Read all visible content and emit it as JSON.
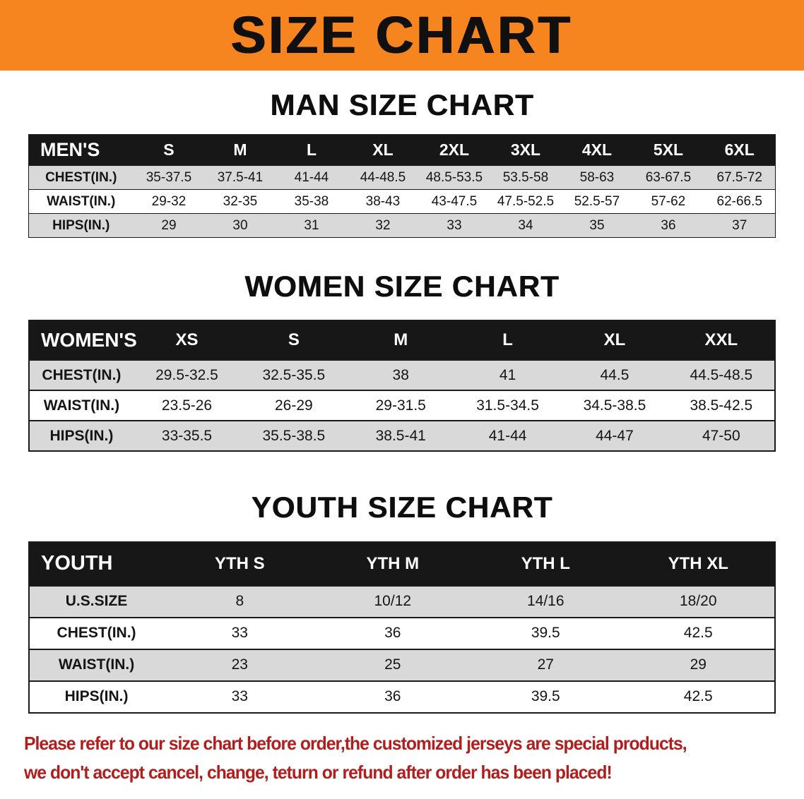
{
  "banner": {
    "title": "SIZE CHART"
  },
  "colors": {
    "banner_bg": "#f6851f",
    "banner_text": "#101010",
    "header_bg": "#171717",
    "header_text": "#ffffff",
    "stripe": "#d9d9d9",
    "border": "#1a1a1a",
    "footer_text": "#b01e1e"
  },
  "sections": [
    {
      "heading": "MAN SIZE CHART",
      "table": {
        "header": [
          "MEN'S",
          "S",
          "M",
          "L",
          "XL",
          "2XL",
          "3XL",
          "4XL",
          "5XL",
          "6XL"
        ],
        "rows": [
          {
            "label": "CHEST(IN.)",
            "values": [
              "35-37.5",
              "37.5-41",
              "41-44",
              "44-48.5",
              "48.5-53.5",
              "53.5-58",
              "58-63",
              "63-67.5",
              "67.5-72"
            ]
          },
          {
            "label": "WAIST(IN.)",
            "values": [
              "29-32",
              "32-35",
              "35-38",
              "38-43",
              "43-47.5",
              "47.5-52.5",
              "52.5-57",
              "57-62",
              "62-66.5"
            ]
          },
          {
            "label": "HIPS(IN.)",
            "values": [
              "29",
              "30",
              "31",
              "32",
              "33",
              "34",
              "35",
              "36",
              "37"
            ]
          }
        ]
      }
    },
    {
      "heading": "WOMEN SIZE CHART",
      "table": {
        "header": [
          "WOMEN'S",
          "XS",
          "S",
          "M",
          "L",
          "XL",
          "XXL"
        ],
        "rows": [
          {
            "label": "CHEST(IN.)",
            "values": [
              "29.5-32.5",
              "32.5-35.5",
              "38",
              "41",
              "44.5",
              "44.5-48.5"
            ]
          },
          {
            "label": "WAIST(IN.)",
            "values": [
              "23.5-26",
              "26-29",
              "29-31.5",
              "31.5-34.5",
              "34.5-38.5",
              "38.5-42.5"
            ]
          },
          {
            "label": "HIPS(IN.)",
            "values": [
              "33-35.5",
              "35.5-38.5",
              "38.5-41",
              "41-44",
              "44-47",
              "47-50"
            ]
          }
        ]
      }
    },
    {
      "heading": "YOUTH SIZE CHART",
      "table": {
        "header": [
          "YOUTH",
          "YTH S",
          "YTH M",
          "YTH L",
          "YTH XL"
        ],
        "rows": [
          {
            "label": "U.S.SIZE",
            "values": [
              "8",
              "10/12",
              "14/16",
              "18/20"
            ]
          },
          {
            "label": "CHEST(IN.)",
            "values": [
              "33",
              "36",
              "39.5",
              "42.5"
            ]
          },
          {
            "label": "WAIST(IN.)",
            "values": [
              "23",
              "25",
              "27",
              "29"
            ]
          },
          {
            "label": "HIPS(IN.)",
            "values": [
              "33",
              "36",
              "39.5",
              "42.5"
            ]
          }
        ]
      }
    }
  ],
  "footer": {
    "line1": "Please refer to our size chart before order,the customized jerseys are special products,",
    "line2": "we don't accept cancel, change, teturn or refund after order has been placed!"
  }
}
